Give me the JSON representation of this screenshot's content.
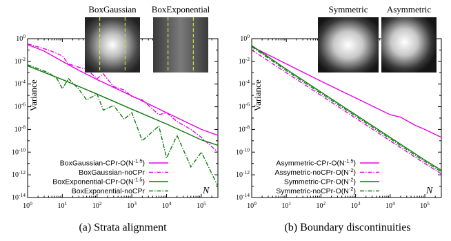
{
  "chart_data": [
    {
      "type": "line",
      "caption": "(a) Strata alignment",
      "ylabel": "Variance",
      "xlabel": "N",
      "xscale": "log",
      "yscale": "log",
      "xlim": [
        1,
        300000
      ],
      "ylim": [
        1e-14,
        1
      ],
      "x_ticks": [
        "10^0",
        "10^1",
        "10^2",
        "10^3",
        "10^4",
        "10^5"
      ],
      "y_ticks": [
        "10^0",
        "10^-2",
        "10^-4",
        "10^-6",
        "10^-8",
        "10^-10",
        "10^-12",
        "10^-14"
      ],
      "legend_position": "bottom-left",
      "insets": [
        {
          "label": "BoxGaussian",
          "style": "gaussian-box"
        },
        {
          "label": "BoxExponential",
          "style": "exponential-box"
        }
      ],
      "series": [
        {
          "name": "BoxGaussian-CPr-O(N",
          "exp": "-1.5",
          "color": "#e600e6",
          "dash": "solid",
          "x": [
            1,
            3,
            10,
            30,
            100,
            1000,
            10000,
            100000,
            300000
          ],
          "y": [
            0.3,
            0.08,
            0.01,
            0.0016,
            0.00025,
            9e-06,
            3e-07,
            1e-08,
            3e-09
          ]
        },
        {
          "name": "BoxGaussian-noCPr",
          "color": "#e600e6",
          "dash": "dashdot",
          "x": [
            1,
            4,
            7,
            10,
            15,
            30,
            50,
            100,
            150,
            300,
            600,
            1000,
            2000,
            6000,
            10000,
            20000,
            50000,
            100000,
            300000
          ],
          "y": [
            0.35,
            0.1,
            0.05,
            0.03,
            0.006,
            0.003,
            0.002,
            0.0003,
            0.0008,
            6e-05,
            3e-05,
            8e-06,
            4e-06,
            2e-07,
            3e-07,
            5e-08,
            1e-08,
            2e-09,
            1e-10
          ]
        },
        {
          "name": "BoxExponential-CPr-O(N",
          "exp": "-1.5",
          "color": "#0b7a0b",
          "dash": "solid",
          "x": [
            1,
            10,
            100,
            1000,
            10000,
            100000,
            300000
          ],
          "y": [
            0.004,
            0.00025,
            1.3e-05,
            6e-07,
            3e-08,
            1.2e-09,
            4e-10
          ]
        },
        {
          "name": "BoxExponential-noCPr",
          "color": "#0b7a0b",
          "dash": "dashdot",
          "x": [
            1,
            4,
            7,
            10,
            15,
            30,
            50,
            100,
            150,
            300,
            600,
            1000,
            2000,
            6000,
            10000,
            20000,
            50000,
            100000,
            300000
          ],
          "y": [
            0.005,
            0.001,
            0.0003,
            4e-05,
            0.0003,
            3.5e-05,
            4e-06,
            1.3e-05,
            5e-07,
            1.3e-06,
            8e-08,
            3e-07,
            1e-09,
            2e-08,
            3e-11,
            3e-09,
            5e-12,
            1e-10,
            1e-13
          ]
        }
      ]
    },
    {
      "type": "line",
      "caption": "(b) Boundary discontinuities",
      "ylabel": "Variance",
      "xlabel": "N",
      "xscale": "log",
      "yscale": "log",
      "xlim": [
        1,
        300000
      ],
      "ylim": [
        1e-14,
        1
      ],
      "x_ticks": [
        "10^0",
        "10^1",
        "10^2",
        "10^3",
        "10^4",
        "10^5"
      ],
      "y_ticks": [
        "10^0",
        "10^-2",
        "10^-4",
        "10^-6",
        "10^-8",
        "10^-10",
        "10^-12",
        "10^-14"
      ],
      "legend_position": "bottom-left",
      "insets": [
        {
          "label": "Symmetric",
          "style": "symmetric-blob"
        },
        {
          "label": "Asymmetric",
          "style": "asymmetric-blob"
        }
      ],
      "series": [
        {
          "name": "Asymmetric-CPr-O(N",
          "exp": "-1.5",
          "color": "#e600e6",
          "dash": "solid",
          "x": [
            1,
            10,
            100,
            1000,
            10000,
            20000,
            50000,
            100000,
            300000
          ],
          "y": [
            0.2,
            0.006,
            0.00018,
            6e-06,
            2e-07,
            1.2e-07,
            2.5e-08,
            1e-08,
            2e-09
          ]
        },
        {
          "name": "Assymetric-noCPr-O(N",
          "exp": "-2",
          "color": "#e600e6",
          "dash": "dashdot",
          "x": [
            1,
            10,
            100,
            1000,
            10000,
            100000,
            300000
          ],
          "y": [
            0.1,
            0.001,
            1e-05,
            1e-07,
            1e-09,
            1e-11,
            1.2e-12
          ]
        },
        {
          "name": "Symmetric-CPr-O(N",
          "exp": "-2",
          "color": "#0b7a0b",
          "dash": "solid",
          "x": [
            1,
            10,
            100,
            1000,
            10000,
            100000,
            300000
          ],
          "y": [
            0.25,
            0.002,
            2e-05,
            2e-07,
            2e-09,
            2e-11,
            2.5e-12
          ]
        },
        {
          "name": "Symmetric-noCPr-O(N",
          "exp": "-2",
          "color": "#0b7a0b",
          "dash": "dashdot",
          "x": [
            1,
            10,
            100,
            1000,
            10000,
            100000,
            300000
          ],
          "y": [
            0.2,
            0.0015,
            1.5e-05,
            1.5e-07,
            1.5e-09,
            1.5e-11,
            1.8e-12
          ]
        }
      ]
    }
  ]
}
